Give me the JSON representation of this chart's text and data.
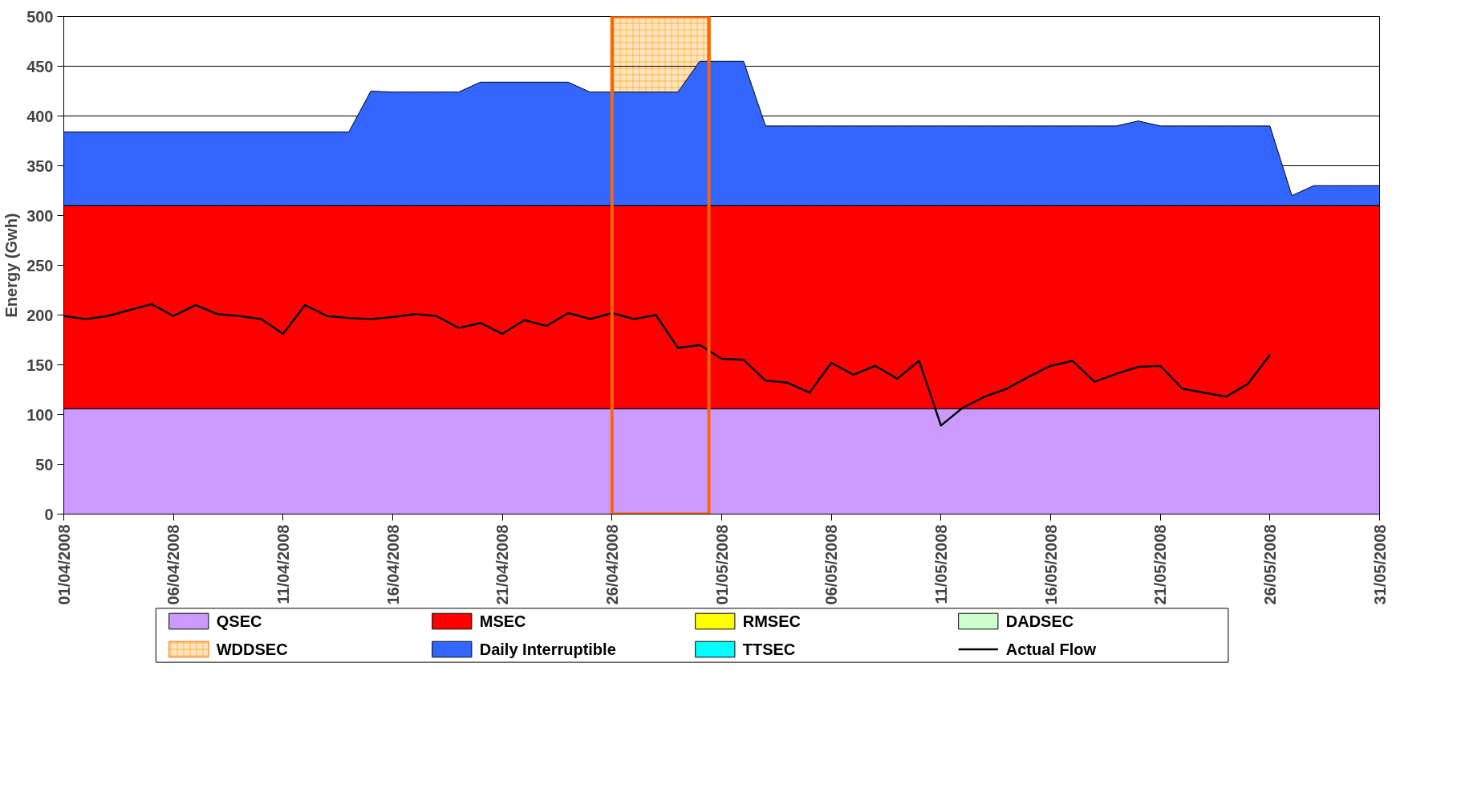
{
  "chart_data": {
    "type": "area",
    "stacked": true,
    "ylabel": "Energy (Gwh)",
    "x": [
      "2008-04-01",
      "2008-04-02",
      "2008-04-03",
      "2008-04-04",
      "2008-04-05",
      "2008-04-06",
      "2008-04-07",
      "2008-04-08",
      "2008-04-09",
      "2008-04-10",
      "2008-04-11",
      "2008-04-12",
      "2008-04-13",
      "2008-04-14",
      "2008-04-15",
      "2008-04-16",
      "2008-04-17",
      "2008-04-18",
      "2008-04-19",
      "2008-04-20",
      "2008-04-21",
      "2008-04-22",
      "2008-04-23",
      "2008-04-24",
      "2008-04-25",
      "2008-04-26",
      "2008-04-27",
      "2008-04-28",
      "2008-04-29",
      "2008-04-30",
      "2008-05-01",
      "2008-05-02",
      "2008-05-03",
      "2008-05-04",
      "2008-05-05",
      "2008-05-06",
      "2008-05-07",
      "2008-05-08",
      "2008-05-09",
      "2008-05-10",
      "2008-05-11",
      "2008-05-12",
      "2008-05-13",
      "2008-05-14",
      "2008-05-15",
      "2008-05-16",
      "2008-05-17",
      "2008-05-18",
      "2008-05-19",
      "2008-05-20",
      "2008-05-21",
      "2008-05-22",
      "2008-05-23",
      "2008-05-24",
      "2008-05-25",
      "2008-05-26",
      "2008-05-27",
      "2008-05-28",
      "2008-05-29",
      "2008-05-30",
      "2008-05-31"
    ],
    "series": [
      {
        "name": "QSEC",
        "color": "#cc99ff",
        "values": [
          106,
          106,
          106,
          106,
          106,
          106,
          106,
          106,
          106,
          106,
          106,
          106,
          106,
          106,
          106,
          106,
          106,
          106,
          106,
          106,
          106,
          106,
          106,
          106,
          106,
          106,
          106,
          106,
          106,
          106,
          106,
          106,
          106,
          106,
          106,
          106,
          106,
          106,
          106,
          106,
          106,
          106,
          106,
          106,
          106,
          106,
          106,
          106,
          106,
          106,
          106,
          106,
          106,
          106,
          106,
          106,
          106,
          106,
          106,
          106,
          106
        ]
      },
      {
        "name": "MSEC",
        "color": "#ff0000",
        "values": [
          204,
          204,
          204,
          204,
          204,
          204,
          204,
          204,
          204,
          204,
          204,
          204,
          204,
          204,
          204,
          204,
          204,
          204,
          204,
          204,
          204,
          204,
          204,
          204,
          204,
          204,
          204,
          204,
          204,
          204,
          204,
          204,
          204,
          204,
          204,
          204,
          204,
          204,
          204,
          204,
          204,
          204,
          204,
          204,
          204,
          204,
          204,
          204,
          204,
          204,
          204,
          204,
          204,
          204,
          204,
          204,
          204,
          204,
          204,
          204,
          204
        ]
      },
      {
        "name": "RMSEC",
        "color": "#ffff00",
        "values": [
          null,
          null,
          null,
          null,
          null,
          null,
          null,
          null,
          null,
          null,
          null,
          null,
          null,
          null,
          null,
          null,
          null,
          null,
          null,
          null,
          null,
          null,
          null,
          null,
          null,
          null,
          null,
          null,
          null,
          null,
          null,
          null,
          null,
          null,
          null,
          null,
          null,
          null,
          null,
          null,
          null,
          null,
          null,
          null,
          null,
          null,
          null,
          null,
          null,
          null,
          null,
          null,
          null,
          null,
          null,
          null,
          null,
          null,
          null,
          null,
          null
        ]
      },
      {
        "name": "DADSEC",
        "color": "#ccffcc",
        "values": [
          null,
          null,
          null,
          null,
          null,
          null,
          null,
          null,
          null,
          null,
          null,
          null,
          null,
          null,
          null,
          null,
          null,
          null,
          null,
          null,
          null,
          null,
          null,
          null,
          null,
          null,
          null,
          null,
          null,
          null,
          null,
          null,
          null,
          null,
          null,
          null,
          null,
          null,
          null,
          null,
          null,
          null,
          null,
          null,
          null,
          null,
          null,
          null,
          null,
          null,
          null,
          null,
          null,
          null,
          null,
          null,
          null,
          null,
          null,
          null,
          null
        ]
      },
      {
        "name": "Daily Interruptible",
        "color": "#3366ff",
        "values": [
          74,
          74,
          74,
          74,
          74,
          74,
          74,
          74,
          74,
          74,
          74,
          74,
          74,
          74,
          115,
          114,
          114,
          114,
          114,
          124,
          124,
          124,
          124,
          124,
          114,
          114,
          114,
          114,
          114,
          145,
          145,
          145,
          80,
          80,
          80,
          80,
          80,
          80,
          80,
          80,
          80,
          80,
          80,
          80,
          80,
          80,
          80,
          80,
          80,
          85,
          80,
          80,
          80,
          80,
          80,
          80,
          10,
          20,
          20,
          20,
          20
        ]
      },
      {
        "name": "TTSEC",
        "color": "#00ffff",
        "values": [
          null,
          null,
          null,
          null,
          null,
          null,
          null,
          null,
          null,
          null,
          null,
          null,
          null,
          null,
          null,
          null,
          null,
          null,
          null,
          null,
          null,
          null,
          null,
          null,
          null,
          null,
          null,
          null,
          null,
          null,
          null,
          null,
          null,
          null,
          null,
          null,
          null,
          null,
          null,
          null,
          null,
          null,
          null,
          null,
          null,
          null,
          null,
          null,
          null,
          null,
          null,
          null,
          null,
          null,
          null,
          null,
          null,
          null,
          null,
          null,
          null
        ]
      },
      {
        "name": "Actual Flow",
        "type": "line",
        "color": "#000000",
        "values": [
          199,
          196,
          199,
          205,
          211,
          199,
          210,
          201,
          199,
          196,
          181,
          210,
          199,
          197,
          196,
          198,
          201,
          199,
          187,
          192,
          181,
          195,
          189,
          202,
          196,
          202,
          196,
          200,
          167,
          170,
          156,
          155,
          134,
          132,
          122,
          152,
          140,
          149,
          136,
          154,
          89,
          107,
          118,
          126,
          138,
          149,
          154,
          133,
          141,
          148,
          149,
          126,
          122,
          118,
          131,
          160,
          null,
          null,
          null,
          null,
          null
        ]
      }
    ],
    "bands": [
      {
        "axis": "x",
        "from": "2008-04-26",
        "to": "2008-04-30T10:00",
        "label": "WDDSEC",
        "color": "#ff9900"
      }
    ],
    "xlim": [
      "2008-04-01",
      "2008-05-31"
    ],
    "xticks": [
      {
        "value": "2008-04-01",
        "label": "01/04/2008"
      },
      {
        "value": "2008-04-06",
        "label": "06/04/2008"
      },
      {
        "value": "2008-04-11",
        "label": "11/04/2008"
      },
      {
        "value": "2008-04-16",
        "label": "16/04/2008"
      },
      {
        "value": "2008-04-21",
        "label": "21/04/2008"
      },
      {
        "value": "2008-04-26",
        "label": "26/04/2008"
      },
      {
        "value": "2008-05-01",
        "label": "01/05/2008"
      },
      {
        "value": "2008-05-06",
        "label": "06/05/2008"
      },
      {
        "value": "2008-05-11",
        "label": "11/05/2008"
      },
      {
        "value": "2008-05-16",
        "label": "16/05/2008"
      },
      {
        "value": "2008-05-21",
        "label": "21/05/2008"
      },
      {
        "value": "2008-05-26",
        "label": "26/05/2008"
      },
      {
        "value": "2008-05-31",
        "label": "31/05/2008"
      }
    ],
    "ylim": [
      0,
      500
    ],
    "yticks": [
      0,
      50,
      100,
      150,
      200,
      250,
      300,
      350,
      400,
      450,
      500
    ],
    "grid": "y",
    "legend": "bottom"
  }
}
